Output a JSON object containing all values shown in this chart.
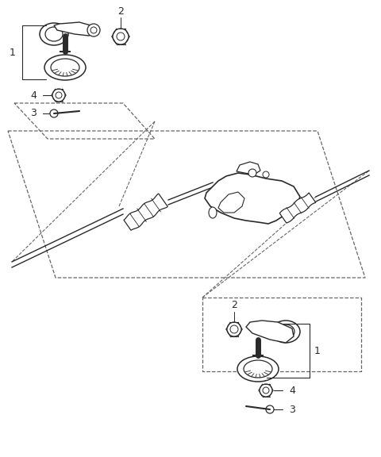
{
  "bg_color": "#ffffff",
  "line_color": "#2a2a2a",
  "dash_color": "#666666",
  "fig_w": 4.8,
  "fig_h": 5.76,
  "dpi": 100,
  "xlim": [
    0,
    480
  ],
  "ylim": [
    0,
    576
  ]
}
